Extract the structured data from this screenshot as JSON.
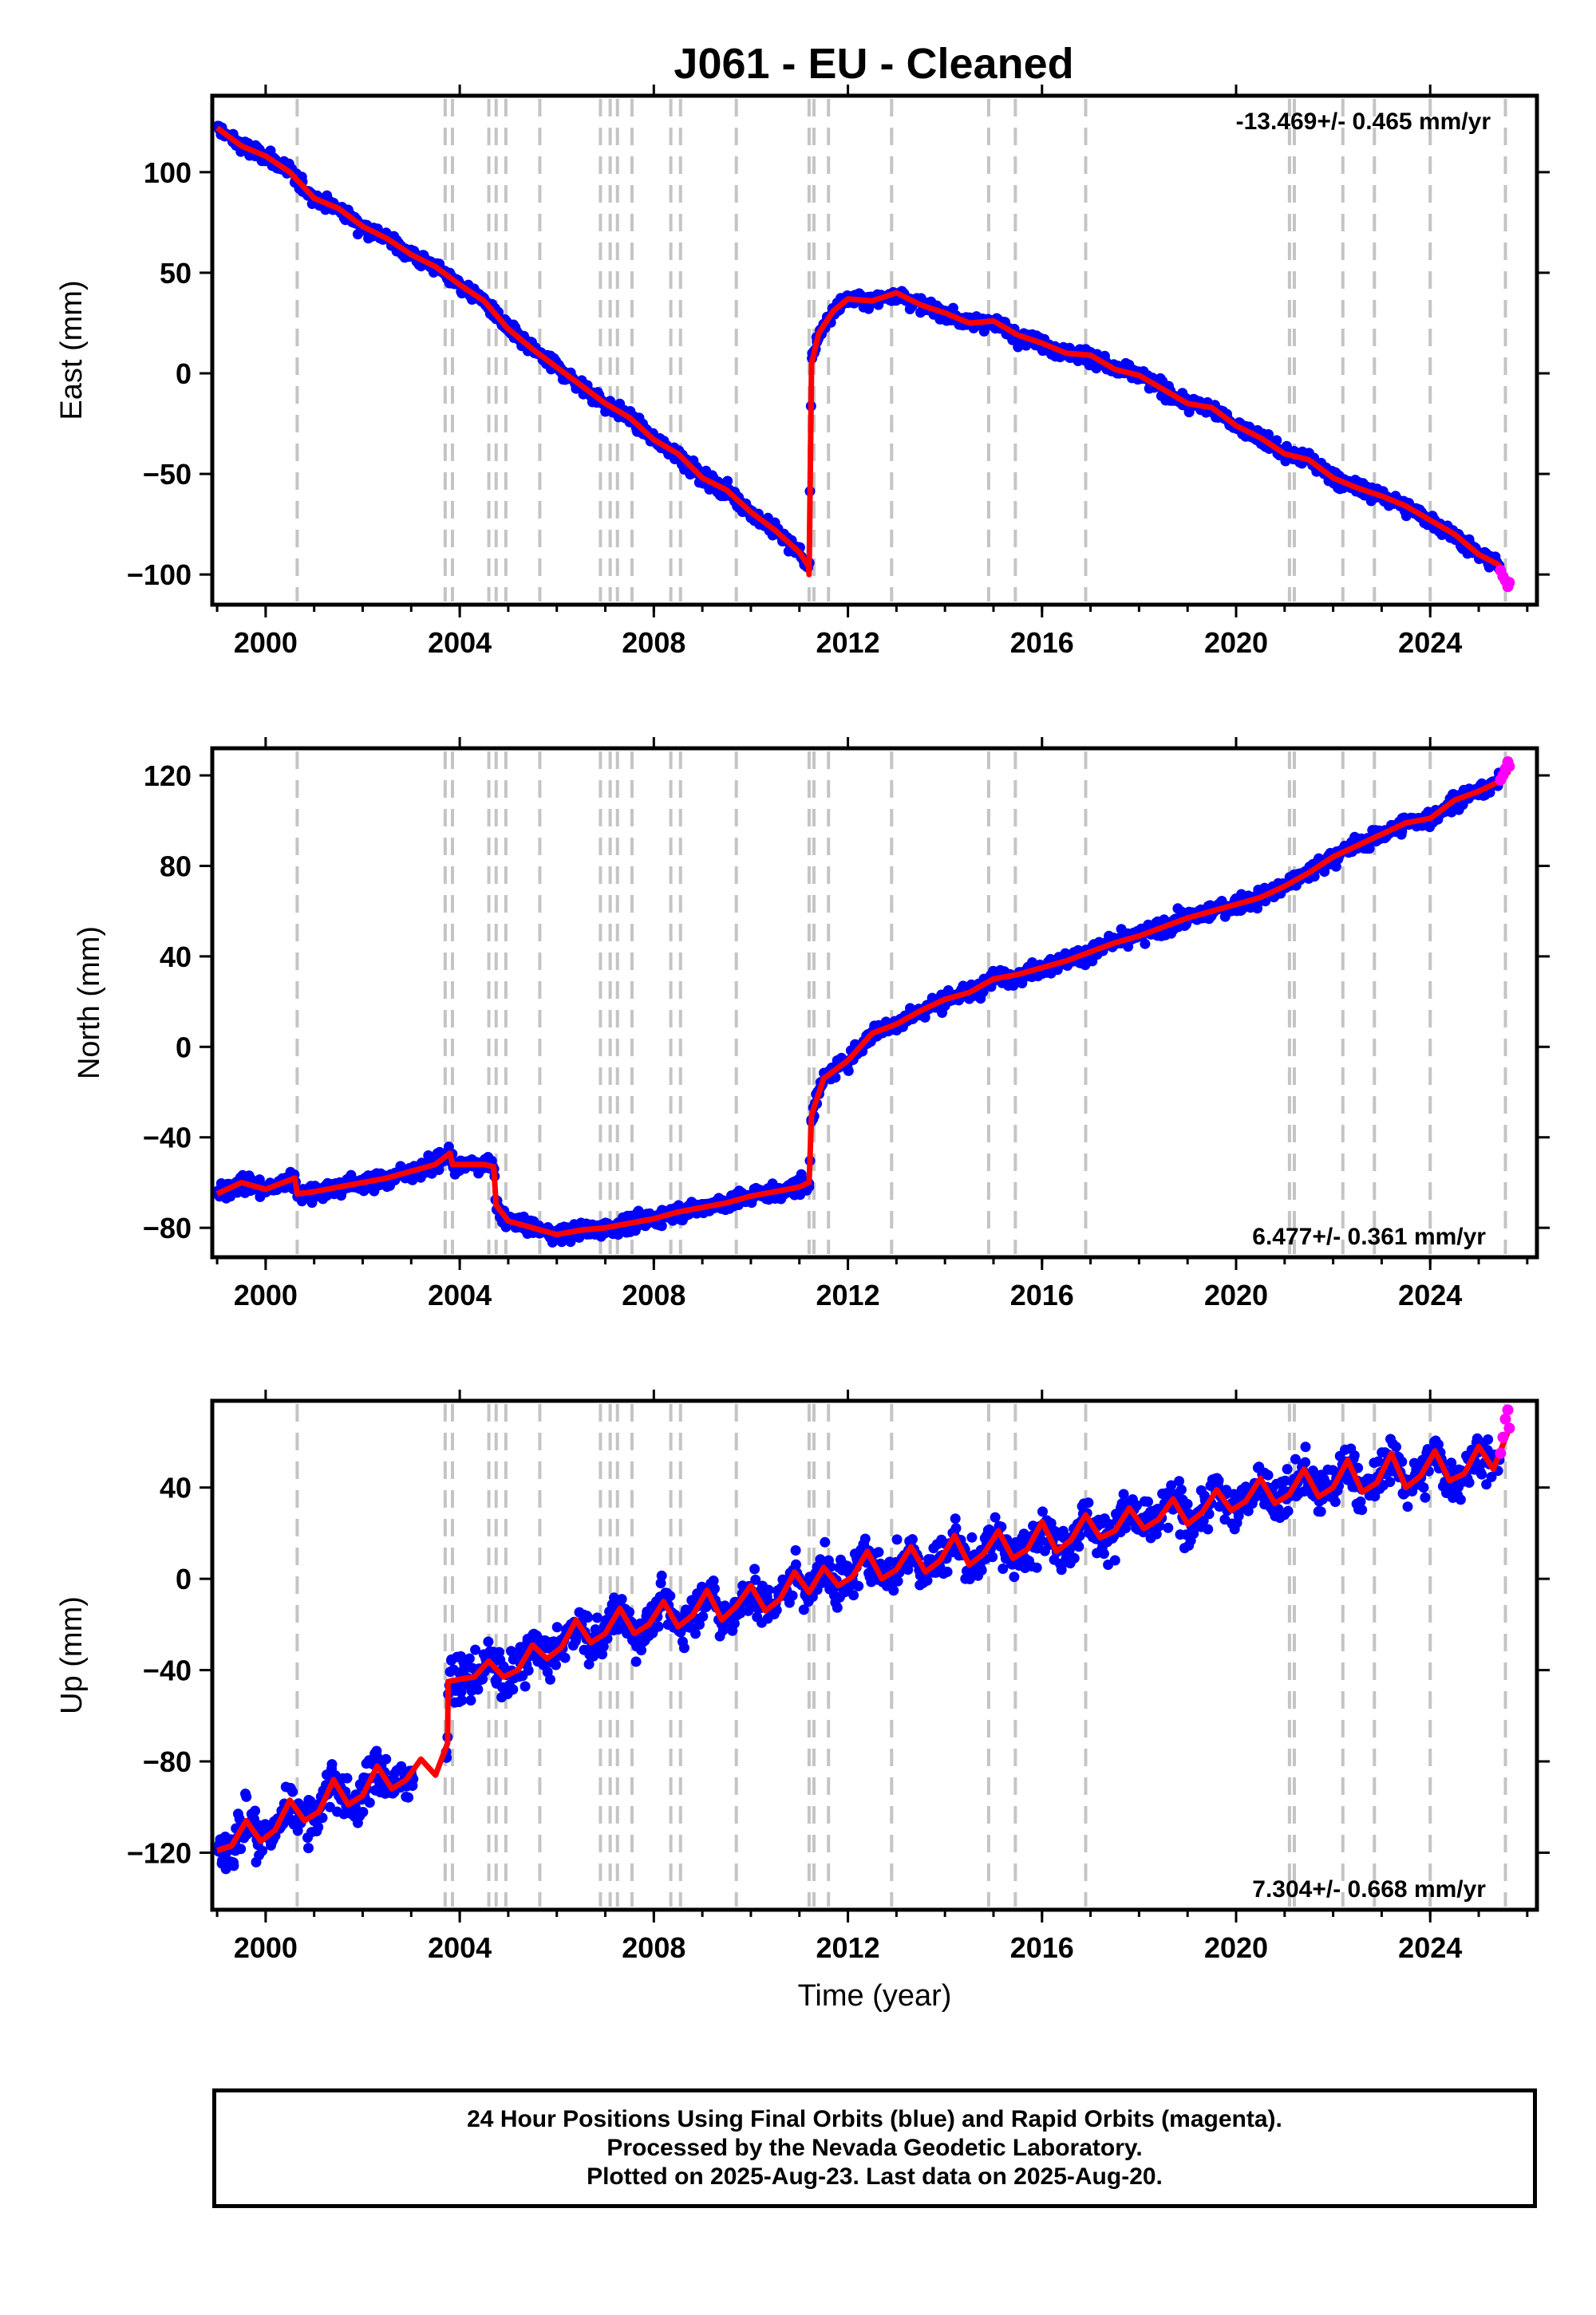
{
  "title": "J061  - EU - Cleaned",
  "footer": {
    "line1": "24 Hour Positions Using Final Orbits (blue) and Rapid Orbits (magenta).",
    "line2": "Processed by the Nevada Geodetic Laboratory.",
    "line3": "Plotted on 2025-Aug-23. Last data on 2025-Aug-20."
  },
  "colors": {
    "final_orbits": "#0000ff",
    "rapid_orbits": "#ff00ff",
    "model": "#ff0000",
    "event_lines": "#c4c4c4"
  },
  "chart_data": [
    {
      "type": "scatter",
      "component": "East",
      "ylabel": "East (mm)",
      "xlabel": "",
      "rate_text": "-13.469+/- 0.465 mm/yr",
      "rate_position": "top-right",
      "xlim": [
        1998.9,
        2026.2
      ],
      "ylim": [
        -115,
        138
      ],
      "x_ticks": [
        "2000",
        "2004",
        "2008",
        "2012",
        "2016",
        "2020",
        "2024"
      ],
      "y_ticks": [
        "100",
        "50",
        "0",
        "−50",
        "−100"
      ],
      "x_tick_values": [
        2000,
        2004,
        2008,
        2012,
        2016,
        2020,
        2024
      ],
      "y_tick_values": [
        100,
        50,
        0,
        -50,
        -100
      ],
      "series": [
        {
          "role": "model",
          "x": [
            1999.0,
            1999.5,
            2000.0,
            2000.5,
            2001.0,
            2001.5,
            2002.0,
            2002.5,
            2003.0,
            2003.5,
            2004.0,
            2004.5,
            2005.0,
            2005.5,
            2006.0,
            2006.5,
            2007.0,
            2007.5,
            2008.0,
            2008.5,
            2009.0,
            2009.5,
            2010.0,
            2010.5,
            2011.0,
            2011.19,
            2011.2,
            2011.25,
            2011.4,
            2011.7,
            2012.0,
            2012.5,
            2013.0,
            2013.5,
            2014.0,
            2014.5,
            2015.0,
            2015.5,
            2016.0,
            2016.5,
            2017.0,
            2017.5,
            2018.0,
            2018.5,
            2019.0,
            2019.5,
            2020.0,
            2020.5,
            2021.0,
            2021.5,
            2022.0,
            2022.5,
            2023.0,
            2023.5,
            2024.0,
            2024.5,
            2025.0,
            2025.4,
            2025.63
          ],
          "y": [
            122,
            113,
            108,
            100,
            87,
            82,
            73,
            67,
            59,
            53,
            44,
            36,
            22,
            12,
            3,
            -6,
            -15,
            -22,
            -33,
            -40,
            -52,
            -58,
            -69,
            -78,
            -89,
            -96,
            -100,
            5,
            20,
            31,
            37,
            36,
            40,
            34,
            30,
            25,
            26,
            19,
            15,
            10,
            9,
            2,
            -1,
            -8,
            -15,
            -17,
            -26,
            -32,
            -40,
            -43,
            -52,
            -57,
            -61,
            -66,
            -73,
            -80,
            -90,
            -95,
            -104
          ]
        },
        {
          "role": "rapid_orbits",
          "x": [
            2025.45,
            2025.5,
            2025.55,
            2025.6,
            2025.63
          ],
          "y": [
            -98,
            -101,
            -103,
            -106,
            -104
          ]
        }
      ],
      "event_lines_x": [
        2000.65,
        2003.7,
        2003.85,
        2004.6,
        2004.75,
        2004.95,
        2005.65,
        2006.9,
        2007.1,
        2007.25,
        2007.55,
        2008.35,
        2008.55,
        2009.7,
        2011.2,
        2011.3,
        2011.6,
        2012.9,
        2014.9,
        2015.45,
        2016.9,
        2021.1,
        2021.2,
        2022.2,
        2022.85,
        2024.0,
        2025.55
      ]
    },
    {
      "type": "scatter",
      "component": "North",
      "ylabel": "North (mm)",
      "xlabel": "",
      "rate_text": "6.477+/- 0.361 mm/yr",
      "rate_position": "bottom-right",
      "xlim": [
        1998.9,
        2026.2
      ],
      "ylim": [
        -93,
        132
      ],
      "x_ticks": [
        "2000",
        "2004",
        "2008",
        "2012",
        "2016",
        "2020",
        "2024"
      ],
      "y_ticks": [
        "120",
        "80",
        "40",
        "0",
        "−40",
        "−80"
      ],
      "x_tick_values": [
        2000,
        2004,
        2008,
        2012,
        2016,
        2020,
        2024
      ],
      "y_tick_values": [
        120,
        80,
        40,
        0,
        -40,
        -80
      ],
      "series": [
        {
          "role": "model",
          "x": [
            1999.0,
            1999.5,
            2000.0,
            2000.6,
            2000.65,
            2001.0,
            2001.5,
            2002.0,
            2002.5,
            2003.0,
            2003.5,
            2003.8,
            2003.85,
            2004.5,
            2004.7,
            2004.75,
            2005.0,
            2005.5,
            2006.0,
            2006.5,
            2007.0,
            2007.5,
            2008.0,
            2008.5,
            2009.0,
            2009.5,
            2010.0,
            2010.5,
            2011.0,
            2011.19,
            2011.2,
            2011.25,
            2011.5,
            2012.0,
            2012.5,
            2013.0,
            2013.5,
            2014.0,
            2014.5,
            2015.0,
            2015.5,
            2016.0,
            2016.5,
            2017.0,
            2017.5,
            2018.0,
            2018.5,
            2019.0,
            2019.5,
            2020.0,
            2020.5,
            2021.0,
            2021.5,
            2022.0,
            2022.5,
            2023.0,
            2023.5,
            2024.0,
            2024.5,
            2025.0,
            2025.4,
            2025.63
          ],
          "y": [
            -65,
            -60,
            -63,
            -58,
            -65,
            -64,
            -62,
            -60,
            -58,
            -55,
            -52,
            -47,
            -52,
            -52,
            -53,
            -70,
            -77,
            -80,
            -83,
            -81,
            -80,
            -78,
            -76,
            -73,
            -71,
            -69,
            -66,
            -64,
            -62,
            -60,
            -60,
            -30,
            -14,
            -6,
            6,
            10,
            16,
            21,
            24,
            30,
            32,
            35,
            38,
            42,
            46,
            49,
            53,
            57,
            60,
            63,
            66,
            71,
            77,
            84,
            89,
            94,
            99,
            101,
            109,
            113,
            117,
            122
          ]
        },
        {
          "role": "rapid_orbits",
          "x": [
            2025.45,
            2025.5,
            2025.55,
            2025.6,
            2025.63
          ],
          "y": [
            118,
            120,
            123,
            126,
            124
          ]
        }
      ],
      "event_lines_x": [
        2000.65,
        2003.7,
        2003.85,
        2004.6,
        2004.75,
        2004.95,
        2005.65,
        2006.9,
        2007.1,
        2007.25,
        2007.55,
        2008.35,
        2008.55,
        2009.7,
        2011.2,
        2011.3,
        2011.6,
        2012.9,
        2014.9,
        2015.45,
        2016.9,
        2021.1,
        2021.2,
        2022.2,
        2022.85,
        2024.0,
        2025.55
      ]
    },
    {
      "type": "scatter",
      "component": "Up",
      "ylabel": "Up (mm)",
      "xlabel": "Time (year)",
      "rate_text": "7.304+/- 0.668 mm/yr",
      "rate_position": "bottom-right",
      "xlim": [
        1998.9,
        2026.2
      ],
      "ylim": [
        -145,
        78
      ],
      "x_ticks": [
        "2000",
        "2004",
        "2008",
        "2012",
        "2016",
        "2020",
        "2024"
      ],
      "y_ticks": [
        "40",
        "0",
        "−40",
        "−80",
        "−120"
      ],
      "x_tick_values": [
        2000,
        2004,
        2008,
        2012,
        2016,
        2020,
        2024
      ],
      "y_tick_values": [
        40,
        0,
        -40,
        -80,
        -120
      ],
      "series": [
        {
          "role": "model",
          "x": [
            1999.0,
            1999.3,
            1999.6,
            1999.9,
            2000.2,
            2000.5,
            2000.8,
            2001.1,
            2001.4,
            2001.7,
            2002.0,
            2002.3,
            2002.6,
            2002.9,
            2003.2,
            2003.5,
            2003.75,
            2003.76,
            2004.0,
            2004.3,
            2004.6,
            2004.9,
            2005.2,
            2005.5,
            2005.8,
            2006.1,
            2006.4,
            2006.7,
            2007.0,
            2007.3,
            2007.6,
            2007.9,
            2008.2,
            2008.5,
            2008.8,
            2009.1,
            2009.4,
            2009.7,
            2010.0,
            2010.3,
            2010.6,
            2010.9,
            2011.2,
            2011.5,
            2011.8,
            2012.1,
            2012.4,
            2012.7,
            2013.0,
            2013.3,
            2013.6,
            2013.9,
            2014.2,
            2014.5,
            2014.8,
            2015.1,
            2015.4,
            2015.7,
            2016.0,
            2016.3,
            2016.6,
            2016.9,
            2017.2,
            2017.5,
            2017.8,
            2018.1,
            2018.4,
            2018.7,
            2019.0,
            2019.3,
            2019.6,
            2019.9,
            2020.2,
            2020.5,
            2020.8,
            2021.1,
            2021.4,
            2021.7,
            2022.0,
            2022.3,
            2022.6,
            2022.9,
            2023.2,
            2023.5,
            2023.8,
            2024.1,
            2024.4,
            2024.7,
            2025.0,
            2025.3,
            2025.63
          ],
          "y": [
            -119,
            -117,
            -106,
            -115,
            -110,
            -97,
            -106,
            -102,
            -88,
            -99,
            -95,
            -82,
            -92,
            -88,
            -79,
            -86,
            -72,
            -45,
            -44,
            -43,
            -36,
            -43,
            -40,
            -29,
            -35,
            -30,
            -18,
            -28,
            -24,
            -13,
            -24,
            -20,
            -10,
            -21,
            -16,
            -5,
            -18,
            -12,
            -3,
            -14,
            -9,
            3,
            -6,
            5,
            -3,
            1,
            12,
            0,
            4,
            14,
            3,
            8,
            19,
            6,
            11,
            21,
            9,
            13,
            25,
            12,
            17,
            28,
            18,
            21,
            31,
            22,
            26,
            35,
            24,
            29,
            39,
            30,
            34,
            44,
            33,
            37,
            48,
            36,
            40,
            52,
            38,
            42,
            55,
            40,
            45,
            56,
            43,
            46,
            58,
            48,
            66
          ]
        },
        {
          "role": "rapid_orbits",
          "x": [
            2025.45,
            2025.5,
            2025.55,
            2025.6,
            2025.63
          ],
          "y": [
            55,
            62,
            70,
            74,
            66
          ]
        }
      ],
      "event_lines_x": [
        2000.65,
        2003.7,
        2003.85,
        2004.6,
        2004.75,
        2004.95,
        2005.65,
        2006.9,
        2007.1,
        2007.25,
        2007.55,
        2008.35,
        2008.55,
        2009.7,
        2011.2,
        2011.3,
        2011.6,
        2012.9,
        2014.9,
        2015.45,
        2016.9,
        2021.1,
        2021.2,
        2022.2,
        2022.85,
        2024.0,
        2025.55
      ]
    }
  ]
}
